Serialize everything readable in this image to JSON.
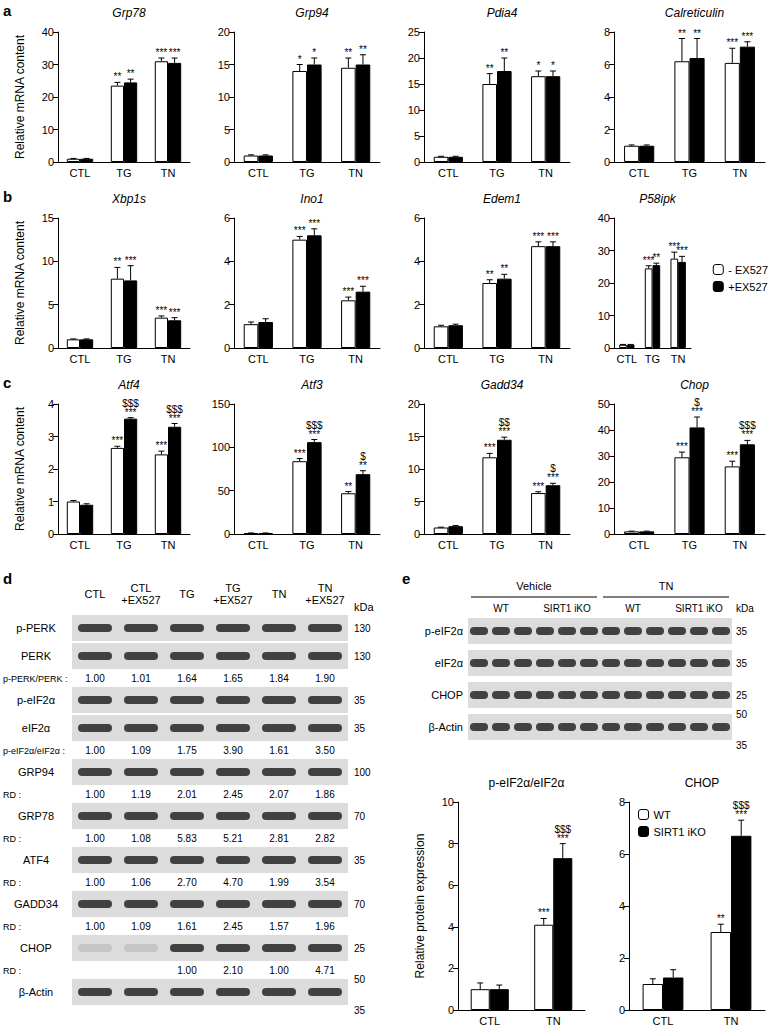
{
  "panel_labels": [
    "a",
    "b",
    "c",
    "d",
    "e"
  ],
  "chart_data": [
    {
      "type": "bar",
      "title": "Grp78",
      "ylabel": "Relative mRNA content",
      "categories": [
        "CTL",
        "TG",
        "TN"
      ],
      "ylim": [
        0,
        40
      ],
      "yticks": [
        0,
        10,
        20,
        30,
        40
      ],
      "series": [
        {
          "name": "- EX527",
          "color": "#ffffff",
          "values": [
            1,
            23.5,
            31
          ],
          "errors": [
            0.1,
            1,
            1
          ],
          "annotations": [
            null,
            "**",
            "***"
          ]
        },
        {
          "name": "+EX527",
          "color": "#000000",
          "values": [
            1,
            24.5,
            30.5
          ],
          "errors": [
            0.1,
            1,
            1.5
          ],
          "annotations": [
            null,
            "**",
            "***"
          ]
        }
      ]
    },
    {
      "type": "bar",
      "title": "Grp94",
      "categories": [
        "CTL",
        "TG",
        "TN"
      ],
      "ylim": [
        0,
        20
      ],
      "yticks": [
        0,
        5,
        10,
        15,
        20
      ],
      "series": [
        {
          "name": "- EX527",
          "color": "#ffffff",
          "values": [
            1,
            14,
            14.5
          ],
          "errors": [
            0.1,
            1,
            1.5
          ],
          "annotations": [
            null,
            "*",
            "**"
          ]
        },
        {
          "name": "+EX527",
          "color": "#000000",
          "values": [
            1,
            15,
            15
          ],
          "errors": [
            0.1,
            1,
            1.5
          ],
          "annotations": [
            null,
            "*",
            "**"
          ]
        }
      ]
    },
    {
      "type": "bar",
      "title": "Pdia4",
      "categories": [
        "CTL",
        "TG",
        "TN"
      ],
      "ylim": [
        0,
        25
      ],
      "yticks": [
        0,
        5,
        10,
        15,
        20,
        25
      ],
      "series": [
        {
          "name": "- EX527",
          "color": "#ffffff",
          "values": [
            1,
            15,
            16.5
          ],
          "errors": [
            0.1,
            2,
            1
          ],
          "annotations": [
            null,
            "**",
            "*"
          ]
        },
        {
          "name": "+EX527",
          "color": "#000000",
          "values": [
            1,
            17.5,
            16.5
          ],
          "errors": [
            0.1,
            2.5,
            1
          ],
          "annotations": [
            null,
            "**",
            "*"
          ]
        }
      ]
    },
    {
      "type": "bar",
      "title": "Calreticulin",
      "categories": [
        "CTL",
        "TG",
        "TN"
      ],
      "ylim": [
        0,
        8
      ],
      "yticks": [
        0,
        2,
        4,
        6,
        8
      ],
      "series": [
        {
          "name": "- EX527",
          "color": "#ffffff",
          "values": [
            1,
            6.2,
            6.1
          ],
          "errors": [
            0.05,
            1.4,
            0.9
          ],
          "annotations": [
            null,
            "**",
            "***"
          ]
        },
        {
          "name": "+EX527",
          "color": "#000000",
          "values": [
            1,
            6.4,
            7.1
          ],
          "errors": [
            0.05,
            1.2,
            0.3
          ],
          "annotations": [
            null,
            "**",
            "***"
          ]
        }
      ]
    },
    {
      "type": "bar",
      "title": "Xbp1s",
      "ylabel": "Relative mRNA content",
      "categories": [
        "CTL",
        "TG",
        "TN"
      ],
      "ylim": [
        0,
        15
      ],
      "yticks": [
        0,
        5,
        10,
        15
      ],
      "series": [
        {
          "name": "- EX527",
          "color": "#ffffff",
          "values": [
            1,
            8,
            3.5
          ],
          "errors": [
            0.05,
            1.3,
            0.2
          ],
          "annotations": [
            null,
            "**",
            "***"
          ]
        },
        {
          "name": "+EX527",
          "color": "#000000",
          "values": [
            1,
            7.8,
            3.2
          ],
          "errors": [
            0.05,
            1.7,
            0.3
          ],
          "annotations": [
            null,
            "***",
            "***"
          ]
        }
      ]
    },
    {
      "type": "bar",
      "title": "Ino1",
      "categories": [
        "CTL",
        "TG",
        "TN"
      ],
      "ylim": [
        0,
        6
      ],
      "yticks": [
        0,
        2,
        4,
        6
      ],
      "series": [
        {
          "name": "- EX527",
          "color": "#ffffff",
          "values": [
            1.1,
            5,
            2.2
          ],
          "errors": [
            0.1,
            0.15,
            0.15
          ],
          "annotations": [
            null,
            "***",
            "***"
          ]
        },
        {
          "name": "+EX527",
          "color": "#000000",
          "values": [
            1.2,
            5.2,
            2.6
          ],
          "errors": [
            0.15,
            0.3,
            0.25
          ],
          "annotations": [
            null,
            "***",
            "***"
          ]
        }
      ]
    },
    {
      "type": "bar",
      "title": "Edem1",
      "categories": [
        "CTL",
        "TG",
        "TN"
      ],
      "ylim": [
        0,
        6
      ],
      "yticks": [
        0,
        2,
        4,
        6
      ],
      "series": [
        {
          "name": "- EX527",
          "color": "#ffffff",
          "values": [
            1,
            3,
            4.7
          ],
          "errors": [
            0.05,
            0.15,
            0.2
          ],
          "annotations": [
            null,
            "**",
            "***"
          ]
        },
        {
          "name": "+EX527",
          "color": "#000000",
          "values": [
            1.05,
            3.2,
            4.7
          ],
          "errors": [
            0.05,
            0.2,
            0.2
          ],
          "annotations": [
            null,
            "**",
            "***"
          ]
        }
      ]
    },
    {
      "type": "bar",
      "title": "P58ipk",
      "legend": "right",
      "categories": [
        "CTL",
        "TG",
        "TN"
      ],
      "ylim": [
        0,
        40
      ],
      "yticks": [
        0,
        10,
        20,
        30,
        40
      ],
      "series": [
        {
          "name": "- EX527",
          "color": "#ffffff",
          "values": [
            1,
            24.5,
            27.5
          ],
          "errors": [
            0.1,
            0.8,
            2
          ],
          "annotations": [
            null,
            "***",
            "***"
          ]
        },
        {
          "name": "+EX527",
          "color": "#000000",
          "values": [
            1,
            25.5,
            26.5
          ],
          "errors": [
            0.1,
            0.6,
            1.7
          ],
          "annotations": [
            null,
            "**",
            "***"
          ]
        }
      ]
    },
    {
      "type": "bar",
      "title": "Atf4",
      "ylabel": "Relative mRNA content",
      "categories": [
        "CTL",
        "TG",
        "TN"
      ],
      "ylim": [
        0,
        4
      ],
      "yticks": [
        0,
        1,
        2,
        3,
        4
      ],
      "series": [
        {
          "name": "- EX527",
          "color": "#ffffff",
          "values": [
            1,
            2.65,
            2.45
          ],
          "errors": [
            0.03,
            0.05,
            0.1
          ],
          "annotations": [
            null,
            "***",
            "***"
          ]
        },
        {
          "name": "+EX527",
          "color": "#000000",
          "values": [
            0.9,
            3.55,
            3.3
          ],
          "errors": [
            0.03,
            0.03,
            0.1
          ],
          "annotations": [
            null,
            "$$$\n***",
            "$$$\n***"
          ]
        }
      ]
    },
    {
      "type": "bar",
      "title": "Atf3",
      "categories": [
        "CTL",
        "TG",
        "TN"
      ],
      "ylim": [
        0,
        150
      ],
      "yticks": [
        0,
        50,
        100,
        150
      ],
      "series": [
        {
          "name": "- EX527",
          "color": "#ffffff",
          "values": [
            1,
            84,
            47
          ],
          "errors": [
            0.2,
            3,
            2
          ],
          "annotations": [
            null,
            "***",
            "**"
          ]
        },
        {
          "name": "+EX527",
          "color": "#000000",
          "values": [
            1,
            106,
            69
          ],
          "errors": [
            0.2,
            3,
            4
          ],
          "annotations": [
            null,
            "$$$\n***",
            "$\n**"
          ]
        }
      ]
    },
    {
      "type": "bar",
      "title": "Gadd34",
      "categories": [
        "CTL",
        "TG",
        "TN"
      ],
      "ylim": [
        0,
        20
      ],
      "yticks": [
        0,
        5,
        10,
        15,
        20
      ],
      "series": [
        {
          "name": "- EX527",
          "color": "#ffffff",
          "values": [
            1,
            11.8,
            6.3
          ],
          "errors": [
            0.05,
            0.6,
            0.2
          ],
          "annotations": [
            null,
            "***",
            "***"
          ]
        },
        {
          "name": "+EX527",
          "color": "#000000",
          "values": [
            1.2,
            14.5,
            7.5
          ],
          "errors": [
            0.1,
            0.4,
            0.3
          ],
          "annotations": [
            null,
            "$$\n***",
            "$\n***"
          ]
        }
      ]
    },
    {
      "type": "bar",
      "title": "Chop",
      "categories": [
        "CTL",
        "TG",
        "TN"
      ],
      "ylim": [
        0,
        50
      ],
      "yticks": [
        0,
        10,
        20,
        30,
        40,
        50
      ],
      "series": [
        {
          "name": "- EX527",
          "color": "#ffffff",
          "values": [
            1,
            29.5,
            26
          ],
          "errors": [
            0.1,
            2,
            2
          ],
          "annotations": [
            null,
            "***",
            "***"
          ]
        },
        {
          "name": "+EX527",
          "color": "#000000",
          "values": [
            1,
            41,
            34.5
          ],
          "errors": [
            0.1,
            4,
            1.5
          ],
          "annotations": [
            null,
            "$\n***",
            "$$$\n***"
          ]
        }
      ]
    },
    {
      "type": "bar",
      "title": "p-eIF2α/eIF2α",
      "ylabel": "Relative protein expression",
      "categories": [
        "CTL",
        "TN"
      ],
      "ylim": [
        0,
        10
      ],
      "yticks": [
        0,
        2,
        4,
        6,
        8,
        10
      ],
      "series": [
        {
          "name": "WT",
          "color": "#ffffff",
          "values": [
            1,
            4.1
          ],
          "errors": [
            0.3,
            0.3
          ],
          "annotations": [
            null,
            "***"
          ]
        },
        {
          "name": "SIRT1 iKO",
          "color": "#000000",
          "values": [
            1,
            7.3
          ],
          "errors": [
            0.2,
            0.7
          ],
          "annotations": [
            null,
            "$$$\n***"
          ]
        }
      ]
    },
    {
      "type": "bar",
      "title": "CHOP",
      "legend": "upper left",
      "categories": [
        "CTL",
        "TN"
      ],
      "ylim": [
        0,
        8
      ],
      "yticks": [
        0,
        2,
        4,
        6,
        8
      ],
      "series": [
        {
          "name": "WT",
          "color": "#ffffff",
          "values": [
            1,
            3
          ],
          "errors": [
            0.2,
            0.3
          ],
          "annotations": [
            null,
            "**"
          ]
        },
        {
          "name": "SIRT1 iKO",
          "color": "#000000",
          "values": [
            1.25,
            6.7
          ],
          "errors": [
            0.3,
            0.6
          ],
          "annotations": [
            null,
            "$$$\n***"
          ]
        }
      ]
    }
  ],
  "blot_d": {
    "kda_label": "kDa",
    "lanes": [
      [
        "CTL"
      ],
      [
        "CTL",
        "+EX527"
      ],
      [
        "TG"
      ],
      [
        "TG",
        "+EX527"
      ],
      [
        "TN"
      ],
      [
        "TN",
        "+EX527"
      ]
    ],
    "rows": [
      {
        "label": "p-PERK",
        "kda": [
          130
        ]
      },
      {
        "label": "PERK",
        "kda": [
          130
        ]
      },
      {
        "label": "p-PERK/PERK :",
        "values": [
          "1.00",
          "1.01",
          "1.64",
          "1.65",
          "1.84",
          "1.90"
        ]
      },
      {
        "label": "p-eIF2α",
        "kda": [
          35
        ]
      },
      {
        "label": "eIF2α",
        "kda": [
          35
        ]
      },
      {
        "label": "p-eIF2α/eIF2α :",
        "values": [
          "1.00",
          "1.09",
          "1.75",
          "3.90",
          "1.61",
          "3.50"
        ]
      },
      {
        "label": "GRP94",
        "kda": [
          100
        ]
      },
      {
        "label": "RD :",
        "values": [
          "1.00",
          "1.19",
          "2.01",
          "2.45",
          "2.07",
          "1.86"
        ]
      },
      {
        "label": "GRP78",
        "kda": [
          70
        ]
      },
      {
        "label": "RD :",
        "values": [
          "1.00",
          "1.08",
          "5.83",
          "5.21",
          "2.81",
          "2.82"
        ]
      },
      {
        "label": "ATF4",
        "kda": [
          35
        ]
      },
      {
        "label": "RD :",
        "values": [
          "1.00",
          "1.06",
          "2.70",
          "4.70",
          "1.99",
          "3.54"
        ]
      },
      {
        "label": "GADD34",
        "kda": [
          70
        ]
      },
      {
        "label": "RD :",
        "values": [
          "1.00",
          "1.09",
          "1.61",
          "2.45",
          "1.57",
          "1.96"
        ]
      },
      {
        "label": "CHOP",
        "kda": [
          25
        ]
      },
      {
        "label": "RD :",
        "values": [
          null,
          null,
          "1.00",
          "2.10",
          "1.00",
          "4.71"
        ]
      },
      {
        "label": "β-Actin",
        "kda": [
          50,
          35
        ]
      }
    ]
  },
  "blot_e": {
    "kda_label": "kDa",
    "groups": [
      {
        "label": "Vehicle",
        "genotypes": [
          "WT",
          "SIRT1 iKO"
        ]
      },
      {
        "label": "TN",
        "genotypes": [
          "WT",
          "SIRT1 iKO"
        ]
      }
    ],
    "rows": [
      {
        "label": "p-eIF2α",
        "kda": [
          35
        ]
      },
      {
        "label": "eIF2α",
        "kda": [
          35
        ]
      },
      {
        "label": "CHOP",
        "kda": [
          25
        ]
      },
      {
        "label": "β-Actin",
        "kda": [
          50,
          35
        ]
      }
    ]
  }
}
